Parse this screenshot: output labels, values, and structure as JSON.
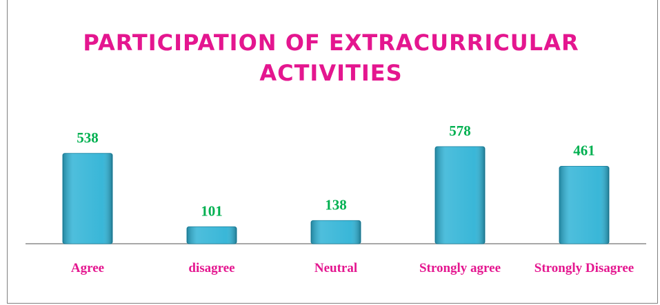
{
  "chart_data": {
    "type": "bar",
    "title": "PARTICIPATION OF EXTRACURRICULAR ACTIVITIES",
    "categories": [
      "Agree",
      "disagree",
      "Neutral",
      "Strongly agree",
      "Strongly Disagree"
    ],
    "values": [
      538,
      101,
      138,
      578,
      461
    ],
    "color": "#2fb3d6"
  }
}
